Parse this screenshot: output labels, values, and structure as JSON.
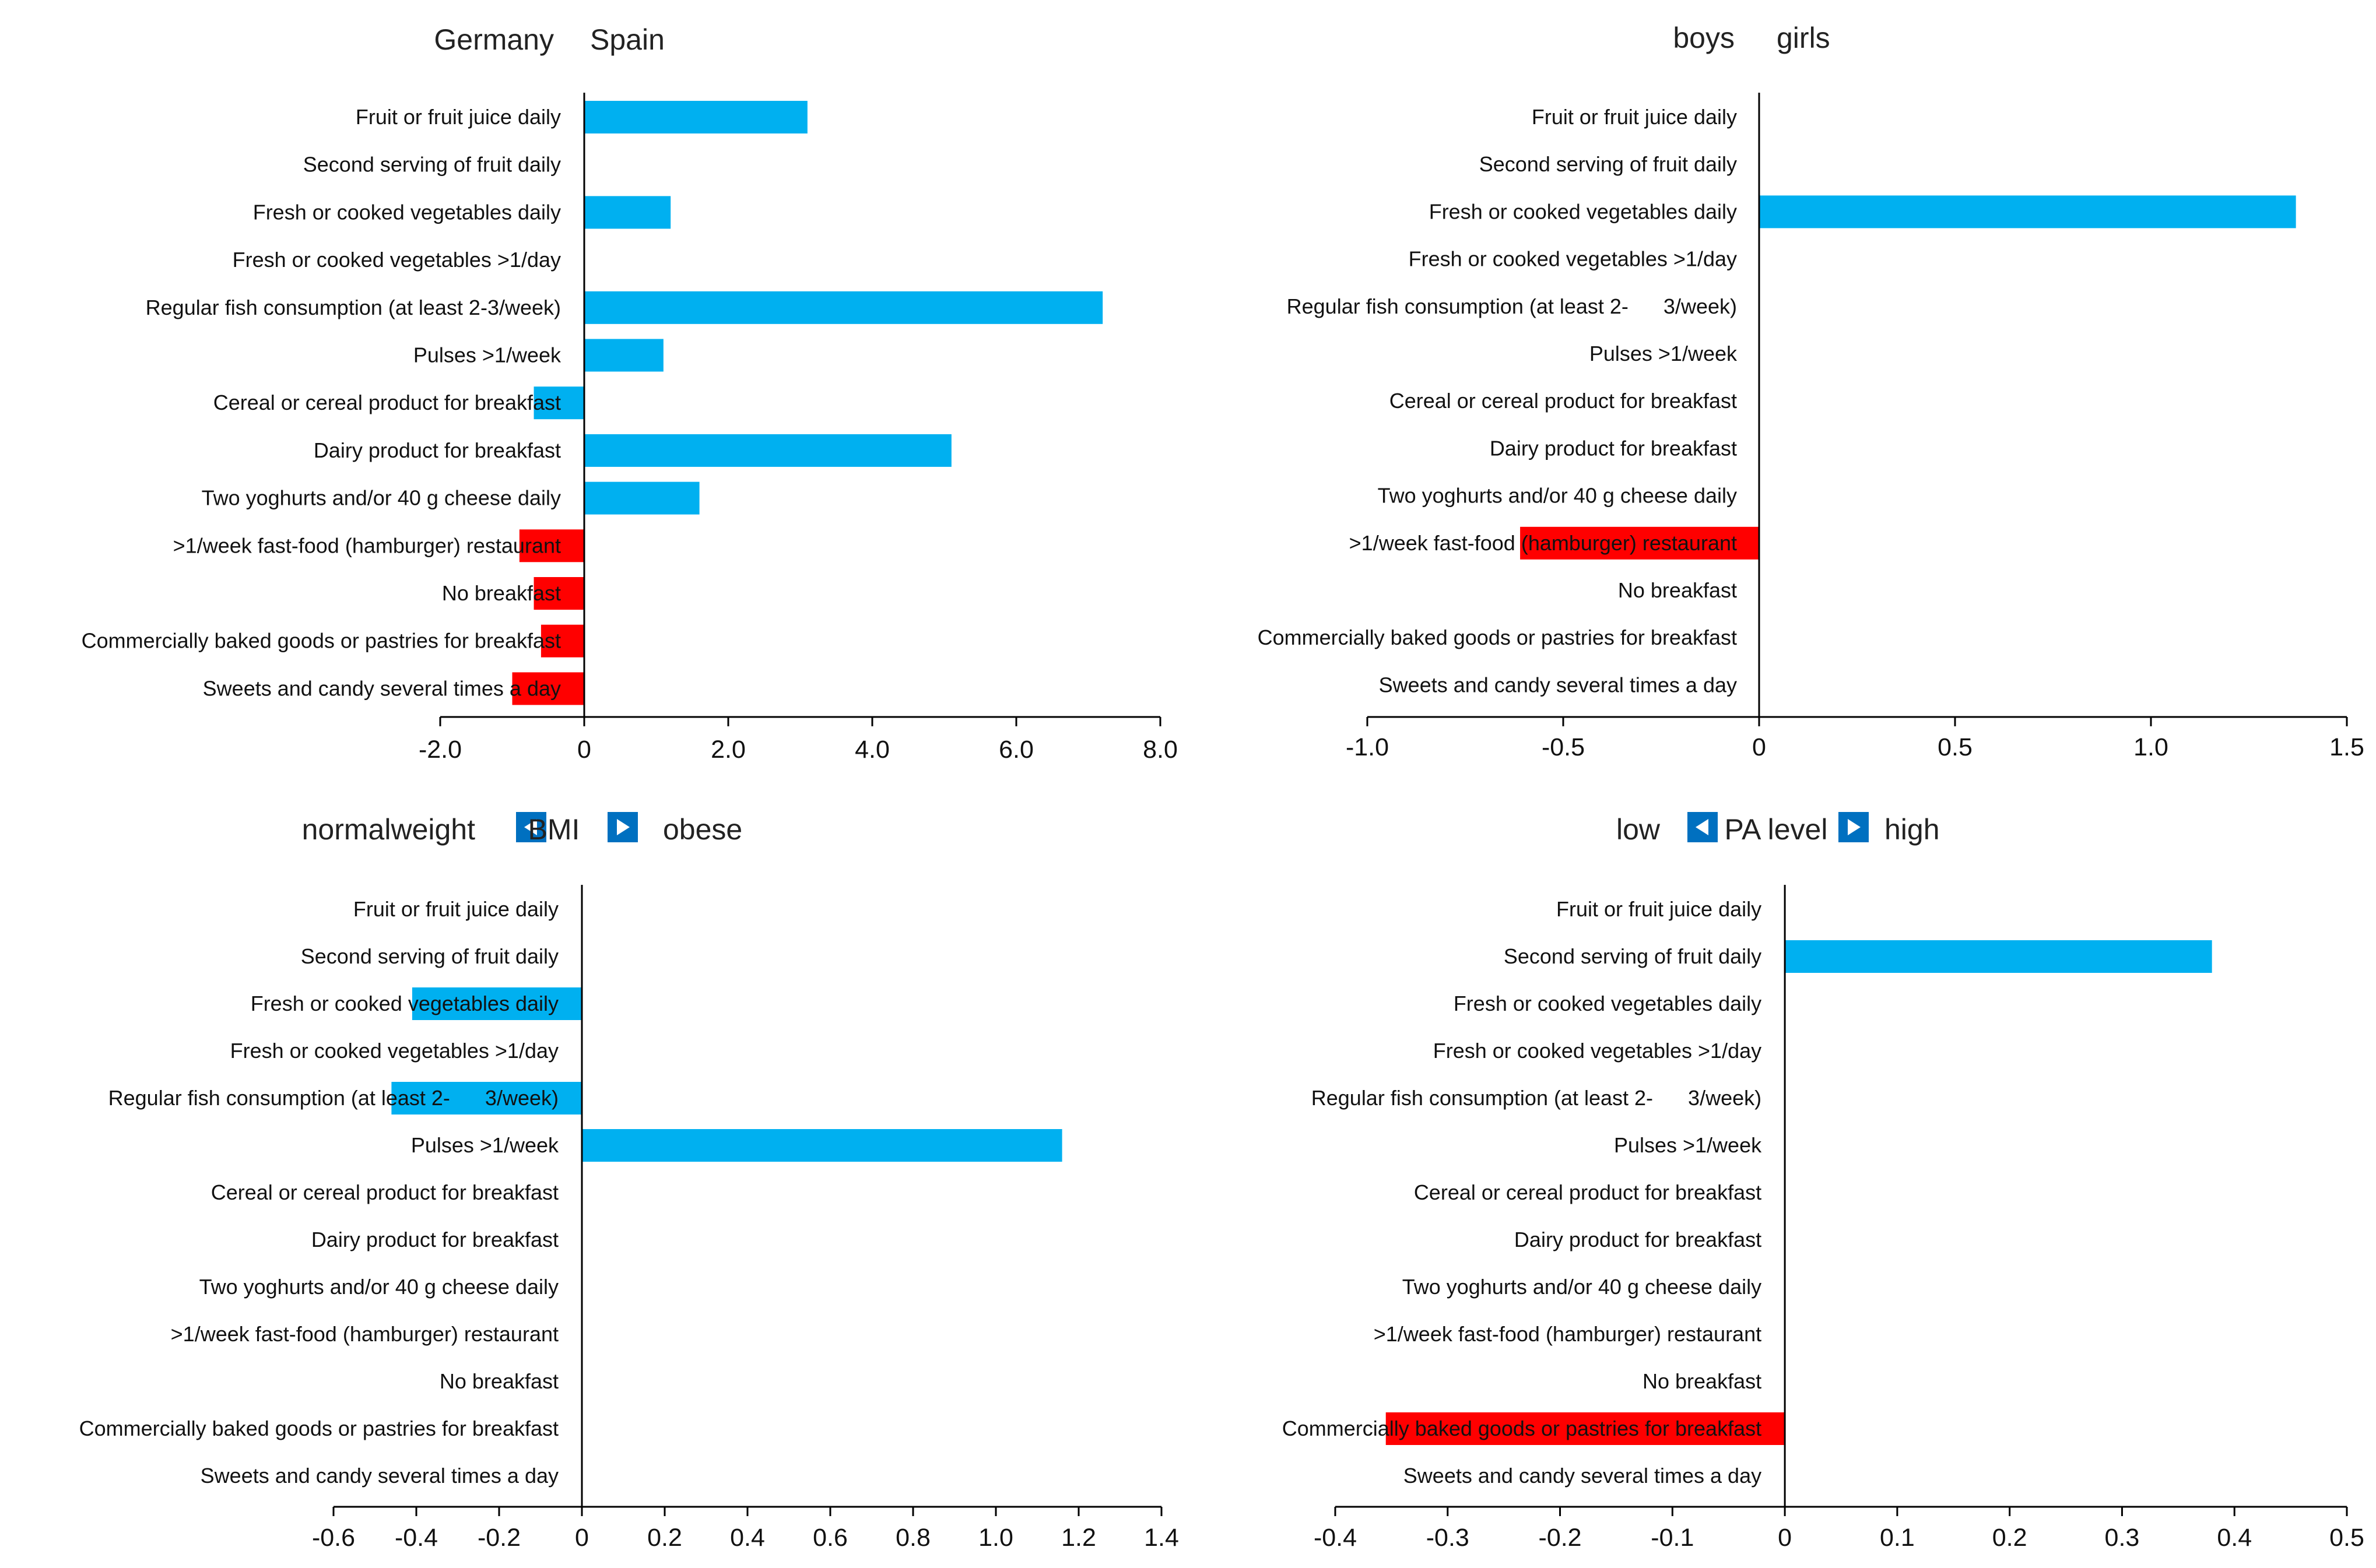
{
  "colors": {
    "positive": "#00B0F0",
    "negative": "#FF0000",
    "arrow_box": "#0070C0",
    "axis": "#000000"
  },
  "chart_data": [
    {
      "type": "bar",
      "orientation": "horizontal",
      "heading": {
        "left": "Germany",
        "right": "Spain",
        "middle": ""
      },
      "categories": [
        "Fruit or fruit juice daily",
        "Second serving of fruit daily",
        "Fresh or cooked vegetables daily",
        "Fresh or cooked vegetables >1/day",
        "Regular fish consumption (at least 2-3/week)",
        "Pulses >1/week",
        "Cereal or cereal product for breakfast",
        "Dairy product for breakfast",
        "Two yoghurts and/or 40 g cheese daily",
        ">1/week fast-food (hamburger) restaurant",
        "No breakfast",
        "Commercially baked goods or pastries for breakfast",
        "Sweets and candy several times a day"
      ],
      "values": [
        3.1,
        null,
        1.2,
        null,
        7.2,
        1.1,
        -0.7,
        5.1,
        1.6,
        -0.9,
        -0.7,
        -0.6,
        -1.0
      ],
      "series_color": [
        "positive",
        "positive",
        "positive",
        "positive",
        "positive",
        "positive",
        "positive",
        "positive",
        "positive",
        "negative",
        "negative",
        "negative",
        "negative"
      ],
      "xlim": [
        -2.0,
        8.0
      ],
      "xticks": [
        -2.0,
        0,
        2.0,
        4.0,
        6.0,
        8.0
      ],
      "xtick_labels": [
        "-2.0",
        "0",
        "2.0",
        "4.0",
        "6.0",
        "8.0"
      ]
    },
    {
      "type": "bar",
      "orientation": "horizontal",
      "heading": {
        "left": "boys",
        "right": "girls",
        "middle": ""
      },
      "categories": [
        "Fruit or fruit juice daily",
        "Second serving of fruit daily",
        "Fresh or cooked vegetables daily",
        "Fresh or cooked vegetables >1/day",
        "Regular fish consumption (at least 2-      3/week)",
        "Pulses >1/week",
        "Cereal or cereal product for breakfast",
        "Dairy product for breakfast",
        "Two yoghurts and/or 40 g cheese daily",
        ">1/week fast-food (hamburger) restaurant",
        "No breakfast",
        "Commercially baked goods or pastries for breakfast",
        "Sweets and candy several times a day"
      ],
      "values": [
        null,
        null,
        1.37,
        null,
        null,
        null,
        null,
        null,
        null,
        -0.61,
        null,
        null,
        null
      ],
      "series_color": [
        "positive",
        "positive",
        "positive",
        "positive",
        "positive",
        "positive",
        "positive",
        "positive",
        "positive",
        "negative",
        "negative",
        "negative",
        "negative"
      ],
      "xlim": [
        -1.0,
        1.5
      ],
      "xticks": [
        -1.0,
        -0.5,
        0,
        0.5,
        1.0,
        1.5
      ],
      "xtick_labels": [
        "-1.0",
        "-0.5",
        "0",
        "0.5",
        "1.0",
        "1.5"
      ]
    },
    {
      "type": "bar",
      "orientation": "horizontal",
      "heading": {
        "left": "normalweight",
        "right": "obese",
        "middle": "BMI"
      },
      "categories": [
        "Fruit or fruit juice daily",
        "Second serving of fruit daily",
        "Fresh or cooked vegetables daily",
        "Fresh or cooked vegetables >1/day",
        "Regular fish consumption (at least 2-      3/week)",
        "Pulses >1/week",
        "Cereal or cereal product for breakfast",
        "Dairy product for breakfast",
        "Two yoghurts and/or 40 g cheese daily",
        ">1/week fast-food (hamburger) restaurant",
        "No breakfast",
        "Commercially baked goods or pastries for breakfast",
        "Sweets and candy several times a day"
      ],
      "values": [
        null,
        null,
        -0.41,
        null,
        -0.46,
        1.16,
        null,
        null,
        null,
        null,
        null,
        null,
        null
      ],
      "series_color": [
        "positive",
        "positive",
        "positive",
        "positive",
        "positive",
        "positive",
        "positive",
        "positive",
        "positive",
        "negative",
        "negative",
        "negative",
        "negative"
      ],
      "xlim": [
        -0.6,
        1.4
      ],
      "xticks": [
        -0.6,
        -0.4,
        -0.2,
        0,
        0.2,
        0.4,
        0.6,
        0.8,
        1.0,
        1.2,
        1.4
      ],
      "xtick_labels": [
        "-0.6",
        "-0.4",
        "-0.2",
        "0",
        "0.2",
        "0.4",
        "0.6",
        "0.8",
        "1.0",
        "1.2",
        "1.4"
      ]
    },
    {
      "type": "bar",
      "orientation": "horizontal",
      "heading": {
        "left": "low",
        "right": "high",
        "middle": "PA level"
      },
      "categories": [
        "Fruit or fruit juice daily",
        "Second serving of fruit daily",
        "Fresh or cooked vegetables daily",
        "Fresh or cooked vegetables >1/day",
        "Regular fish consumption (at least 2-      3/week)",
        "Pulses >1/week",
        "Cereal or cereal product for breakfast",
        "Dairy product for breakfast",
        "Two yoghurts and/or 40 g cheese daily",
        ">1/week fast-food (hamburger) restaurant",
        "No breakfast",
        "Commercially baked goods or pastries for breakfast",
        "Sweets and candy several times a day"
      ],
      "values": [
        null,
        0.38,
        null,
        null,
        null,
        null,
        null,
        null,
        null,
        null,
        null,
        -0.355,
        null
      ],
      "series_color": [
        "positive",
        "positive",
        "positive",
        "positive",
        "positive",
        "positive",
        "positive",
        "positive",
        "positive",
        "negative",
        "negative",
        "negative",
        "negative"
      ],
      "xlim": [
        -0.4,
        0.5
      ],
      "xticks": [
        -0.4,
        -0.3,
        -0.2,
        -0.1,
        0,
        0.1,
        0.2,
        0.3,
        0.4,
        0.5
      ],
      "xtick_labels": [
        "-0.4",
        "-0.3",
        "-0.2",
        "-0.1",
        "0",
        "0.1",
        "0.2",
        "0.3",
        "0.4",
        "0.5"
      ]
    }
  ]
}
